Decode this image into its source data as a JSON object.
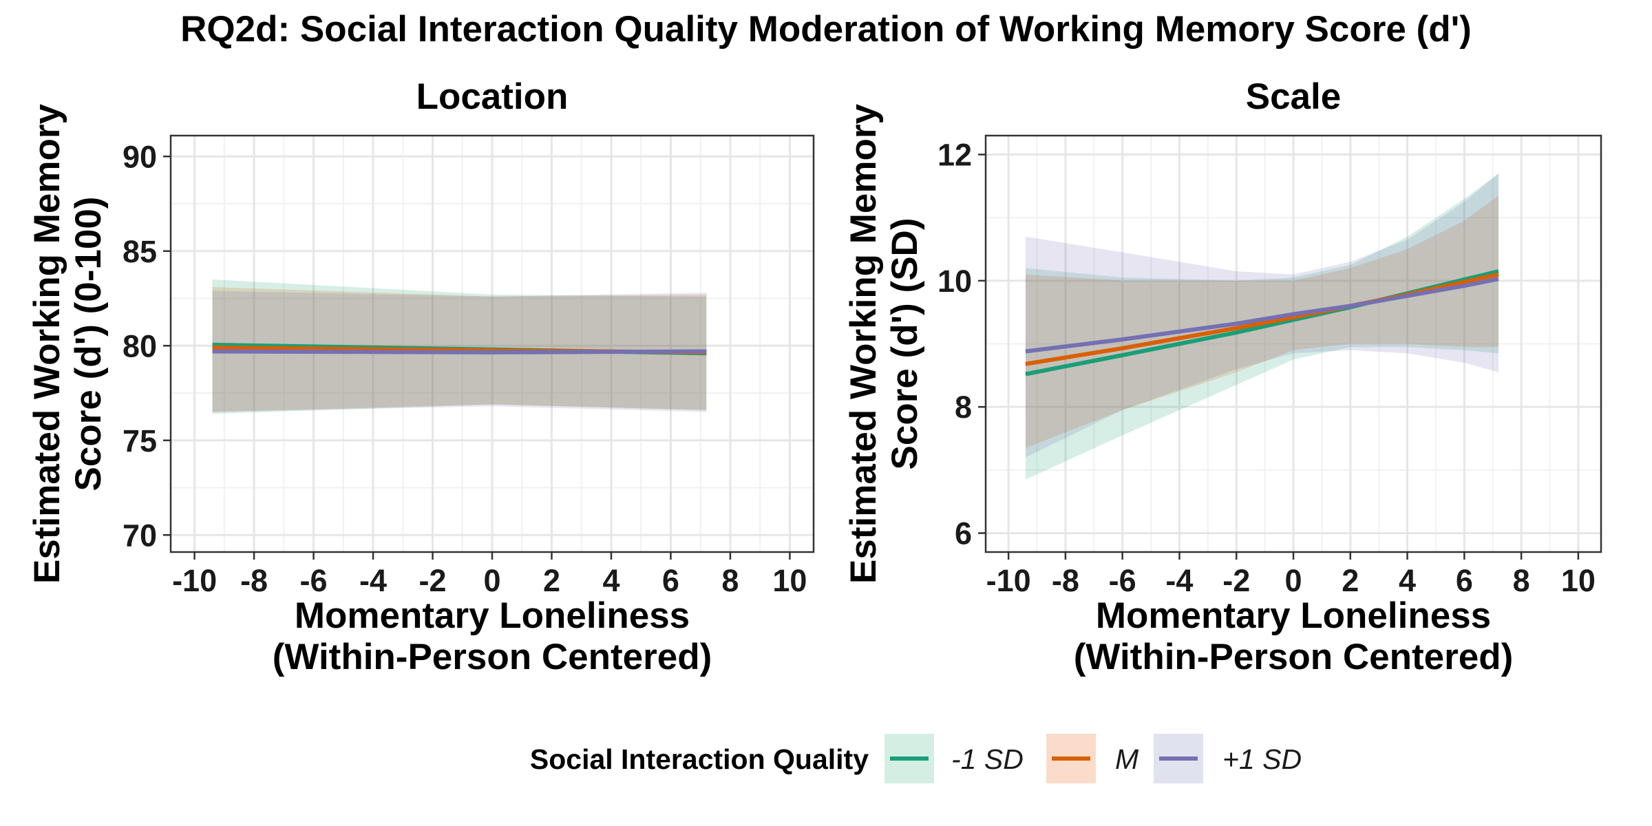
{
  "title": "RQ2d: Social Interaction Quality Moderation of Working Memory Score (d')",
  "legend": {
    "title": "Social Interaction Quality",
    "items": [
      {
        "label": "-1 SD",
        "line_color": "#1b9e77",
        "fill_color": "#d5eee3"
      },
      {
        "label": "M",
        "line_color": "#d95f02",
        "fill_color": "#fbdccb"
      },
      {
        "label": "+1 SD",
        "line_color": "#7570b3",
        "fill_color": "#e1e2ef"
      }
    ]
  },
  "chart_data": [
    {
      "type": "line",
      "title": "Location",
      "xlabel": [
        "Momentary Loneliness",
        "(Within-Person Centered)"
      ],
      "ylabel": [
        "Estimated Working Memory",
        "Score (d') (0-100)"
      ],
      "xlim": [
        -10.8,
        10.8
      ],
      "ylim": [
        69.1,
        91.1
      ],
      "xticks": [
        -10,
        -8,
        -6,
        -4,
        -2,
        0,
        2,
        4,
        6,
        8,
        10
      ],
      "yticks": [
        70,
        75,
        80,
        85,
        90
      ],
      "grid": true,
      "series": [
        {
          "name": "-1 SD",
          "color": "#1b9e77",
          "fill": "#1b9e77",
          "x": [
            -9.4,
            0,
            7.2
          ],
          "y": [
            80.05,
            79.8,
            79.6
          ],
          "lower": [
            76.4,
            76.9,
            76.6
          ],
          "upper": [
            83.5,
            82.7,
            82.6
          ]
        },
        {
          "name": "M",
          "color": "#d95f02",
          "fill": "#d95f02",
          "x": [
            -9.4,
            0,
            7.2
          ],
          "y": [
            79.9,
            79.75,
            79.65
          ],
          "lower": [
            76.5,
            76.9,
            76.6
          ],
          "upper": [
            83.1,
            82.6,
            82.7
          ]
        },
        {
          "name": "+1 SD",
          "color": "#7570b3",
          "fill": "#7570b3",
          "x": [
            -9.4,
            0,
            7.2
          ],
          "y": [
            79.7,
            79.65,
            79.7
          ],
          "lower": [
            76.5,
            76.8,
            76.5
          ],
          "upper": [
            82.9,
            82.6,
            82.8
          ]
        }
      ]
    },
    {
      "type": "line",
      "title": "Scale",
      "xlabel": [
        "Momentary Loneliness",
        "(Within-Person Centered)"
      ],
      "ylabel": [
        "Estimated Working Memory",
        "Score (d') (SD)"
      ],
      "xlim": [
        -10.8,
        10.8
      ],
      "ylim": [
        5.7,
        12.3
      ],
      "xticks": [
        -10,
        -8,
        -6,
        -4,
        -2,
        0,
        2,
        4,
        6,
        8,
        10
      ],
      "yticks": [
        6,
        8,
        10,
        12
      ],
      "grid": true,
      "series": [
        {
          "name": "-1 SD",
          "color": "#1b9e77",
          "fill": "#1b9e77",
          "x": [
            -9.4,
            -6,
            -2,
            0,
            2,
            4,
            6,
            7.2
          ],
          "y": [
            8.52,
            8.82,
            9.18,
            9.38,
            9.58,
            9.8,
            10.02,
            10.15
          ],
          "lower": [
            6.85,
            7.55,
            8.35,
            8.75,
            8.95,
            8.95,
            8.9,
            8.85
          ],
          "upper": [
            10.2,
            10.05,
            10.0,
            10.05,
            10.25,
            10.7,
            11.3,
            11.7
          ]
        },
        {
          "name": "M",
          "color": "#d95f02",
          "fill": "#d95f02",
          "x": [
            -9.4,
            -6,
            -2,
            0,
            2,
            4,
            6,
            7.2
          ],
          "y": [
            8.68,
            8.93,
            9.25,
            9.42,
            9.6,
            9.78,
            9.98,
            10.1
          ],
          "lower": [
            7.35,
            7.95,
            8.55,
            8.9,
            9.0,
            9.0,
            8.95,
            8.95
          ],
          "upper": [
            10.1,
            10.0,
            10.0,
            10.0,
            10.2,
            10.5,
            10.95,
            11.35
          ]
        },
        {
          "name": "+1 SD",
          "color": "#7570b3",
          "fill": "#7570b3",
          "x": [
            -9.4,
            -6,
            -2,
            0,
            2,
            4,
            6,
            7.2
          ],
          "y": [
            8.88,
            9.07,
            9.32,
            9.47,
            9.6,
            9.76,
            9.92,
            10.03
          ],
          "lower": [
            7.2,
            7.95,
            8.6,
            8.85,
            8.9,
            8.85,
            8.7,
            8.55
          ],
          "upper": [
            10.7,
            10.45,
            10.15,
            10.1,
            10.3,
            10.65,
            11.25,
            11.7
          ]
        }
      ]
    }
  ]
}
